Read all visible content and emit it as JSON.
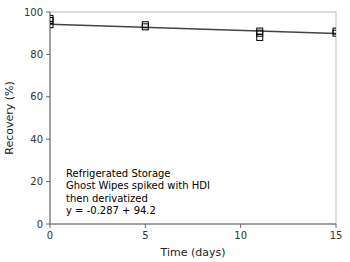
{
  "chart_data": {
    "type": "scatter",
    "xlabel": "Time (days)",
    "ylabel": "Recovery (%)",
    "xlim": [
      0,
      15
    ],
    "ylim": [
      0,
      100
    ],
    "xticks": [
      0,
      5,
      10,
      15
    ],
    "yticks": [
      0,
      20,
      40,
      60,
      80,
      100
    ],
    "series": [
      {
        "type": "line",
        "line_style": "solid",
        "color": "#444444",
        "x": [
          0,
          15
        ],
        "values": [
          94.2,
          89.895
        ]
      },
      {
        "type": "scatter",
        "marker": "square",
        "color": "black",
        "x": [
          0,
          0,
          0,
          5,
          5,
          11,
          11,
          11,
          15,
          15
        ],
        "values": [
          94,
          96,
          97,
          93,
          94,
          88,
          90,
          91,
          90,
          91
        ]
      }
    ],
    "annotations": [
      "Refrigerated Storage",
      "Ghost Wipes spiked with HDI",
      "then derivatized",
      "y = -0.287 + 94.2"
    ]
  }
}
